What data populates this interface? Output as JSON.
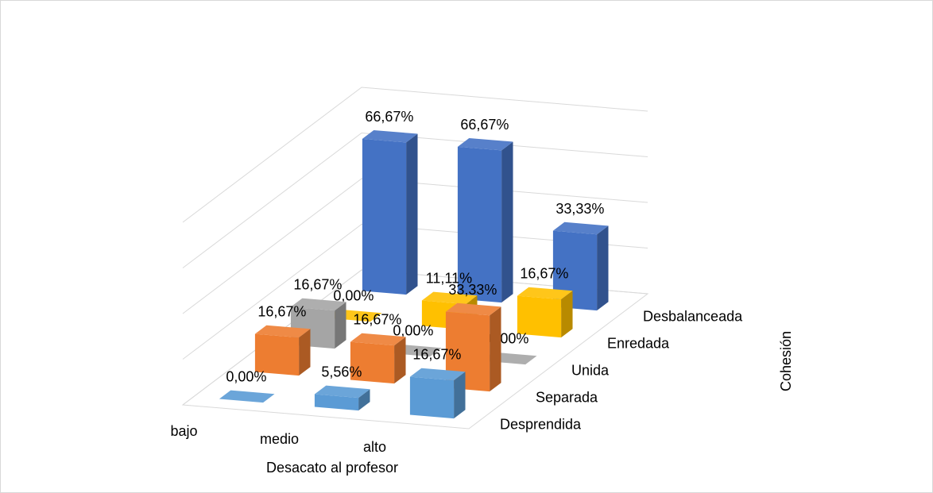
{
  "chart_data": {
    "type": "bar3d",
    "x_label": "Desacato al profesor",
    "z_label": "Cohesión",
    "categories": [
      "bajo",
      "medio",
      "alto"
    ],
    "series": [
      {
        "name": "Desprendida",
        "color": "#5b9bd5",
        "values": [
          0,
          5.56,
          16.67
        ],
        "value_labels": [
          "0,00%",
          "5,56%",
          "16,67%"
        ]
      },
      {
        "name": "Separada",
        "color": "#ed7d31",
        "values": [
          16.67,
          16.67,
          33.33
        ],
        "value_labels": [
          "16,67%",
          "16,67%",
          "33,33%"
        ]
      },
      {
        "name": "Unida",
        "color": "#a5a5a5",
        "values": [
          16.67,
          0,
          0
        ],
        "value_labels": [
          "16,67%",
          "0,00%",
          "0,00%"
        ]
      },
      {
        "name": "Enredada",
        "color": "#ffc000",
        "values": [
          0,
          11.11,
          16.67
        ],
        "value_labels": [
          "0,00%",
          "11,11%",
          "16,67%"
        ]
      },
      {
        "name": "Desbalanceada",
        "color": "#4472c4",
        "values": [
          66.67,
          66.67,
          33.33
        ],
        "value_labels": [
          "66,67%",
          "66,67%",
          "33,33%"
        ]
      }
    ],
    "ylim": [
      0,
      80
    ],
    "yticks": [
      0,
      20,
      40,
      60,
      80
    ],
    "grid": true
  }
}
